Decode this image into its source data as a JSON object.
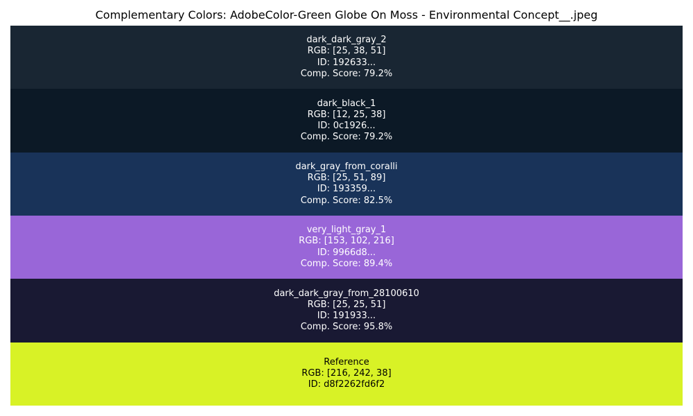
{
  "chart_data": {
    "type": "table",
    "title": "Complementary Colors: AdobeColor-Green Globe On Moss - Environmental Concept__.jpeg",
    "rows": [
      {
        "name": "dark_dark_gray_2",
        "rgb_text": "RGB: [25, 38, 51]",
        "id_text": "ID: 192633...",
        "score_text": "Comp. Score: 79.2%",
        "rgb": [
          25,
          38,
          51
        ],
        "color": "#192633",
        "score": 79.2,
        "text_color": "#ffffff"
      },
      {
        "name": "dark_black_1",
        "rgb_text": "RGB: [12, 25, 38]",
        "id_text": "ID: 0c1926...",
        "score_text": "Comp. Score: 79.2%",
        "rgb": [
          12,
          25,
          38
        ],
        "color": "#0c1926",
        "score": 79.2,
        "text_color": "#ffffff"
      },
      {
        "name": "dark_gray_from_coralli",
        "rgb_text": "RGB: [25, 51, 89]",
        "id_text": "ID: 193359...",
        "score_text": "Comp. Score: 82.5%",
        "rgb": [
          25,
          51,
          89
        ],
        "color": "#193359",
        "score": 82.5,
        "text_color": "#ffffff"
      },
      {
        "name": "very_light_gray_1",
        "rgb_text": "RGB: [153, 102, 216]",
        "id_text": "ID: 9966d8...",
        "score_text": "Comp. Score: 89.4%",
        "rgb": [
          153,
          102,
          216
        ],
        "color": "#9966d8",
        "score": 89.4,
        "text_color": "#ffffff"
      },
      {
        "name": "dark_dark_gray_from_28100610",
        "rgb_text": "RGB: [25, 25, 51]",
        "id_text": "ID: 191933...",
        "score_text": "Comp. Score: 95.8%",
        "rgb": [
          25,
          25,
          51
        ],
        "color": "#191933",
        "score": 95.8,
        "text_color": "#ffffff"
      },
      {
        "name": "Reference",
        "rgb_text": "RGB: [216, 242, 38]",
        "id_text": "ID: d8f2262fd6f2",
        "score_text": "",
        "rgb": [
          216,
          242,
          38
        ],
        "color": "#d8f226",
        "text_color": "#000000"
      }
    ]
  }
}
